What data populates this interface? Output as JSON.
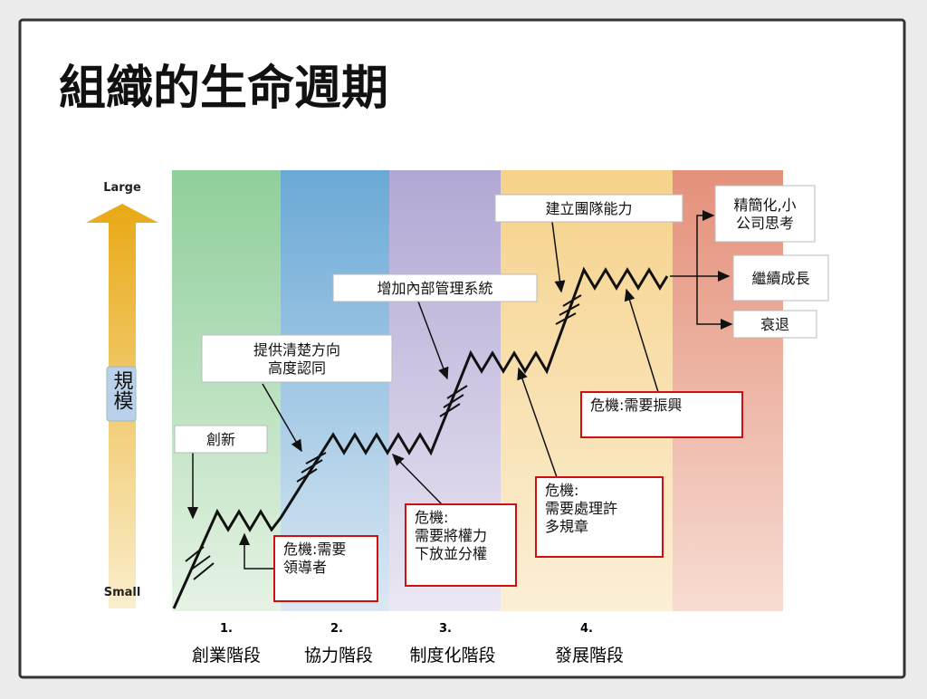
{
  "title": "組織的生命週期",
  "axis": {
    "top": "Large",
    "bottom": "Small",
    "label": "規模"
  },
  "stages": [
    {
      "number": "1.",
      "name": "創業階段"
    },
    {
      "number": "2.",
      "name": "協力階段"
    },
    {
      "number": "3.",
      "name": "制度化階段"
    },
    {
      "number": "4.",
      "name": "發展階段"
    }
  ],
  "annotations": [
    {
      "lines": [
        "建立團隊能力"
      ]
    },
    {
      "lines": [
        "增加內部管理系統"
      ]
    },
    {
      "lines": [
        "提供清楚方向",
        "高度認同"
      ]
    },
    {
      "lines": [
        "創新"
      ]
    },
    {
      "lines": [
        "危機:需要振興"
      ]
    },
    {
      "lines": [
        "危機:",
        "需要處理許",
        "多規章"
      ]
    },
    {
      "lines": [
        "危機:",
        "需要將權力",
        "下放並分權"
      ]
    },
    {
      "lines": [
        "危機:需要",
        "領導者"
      ]
    }
  ],
  "outcomes": [
    {
      "lines": [
        "精簡化,小",
        "公司思考"
      ]
    },
    {
      "lines": [
        "繼續成長"
      ]
    },
    {
      "lines": [
        "衰退"
      ]
    }
  ]
}
